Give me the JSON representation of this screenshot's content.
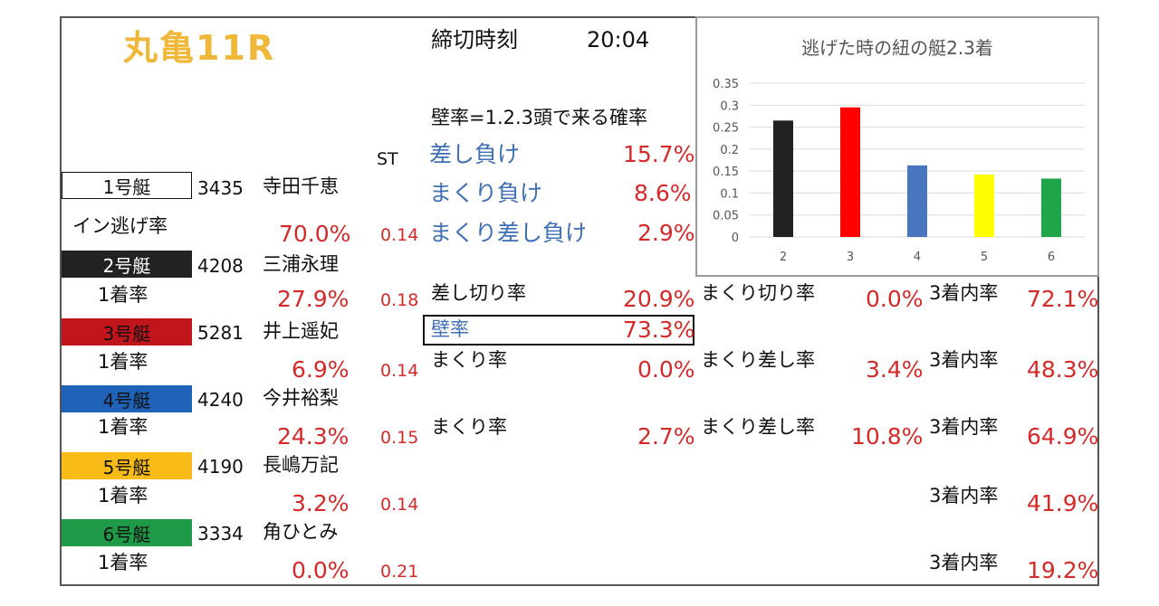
{
  "race_title": "丸亀11R",
  "deadline_label": "締切時刻",
  "deadline_time": "20:04",
  "wall_note": "壁率=1.2.3頭で来る確率",
  "st_header": "ST",
  "lane1_scenarios": [
    {
      "label": "差し負け",
      "value": "15.7%"
    },
    {
      "label": "まくり負け",
      "value": "8.6%"
    },
    {
      "label": "まくり差し負け",
      "value": "2.9%"
    }
  ],
  "boats": [
    {
      "name": "1号艇",
      "id": "3435",
      "racer": "寺田千恵",
      "rate_label": "イン逃げ率",
      "rate": "70.0%",
      "st": "0.14",
      "color": "#ffffff",
      "text_color": "#111111"
    },
    {
      "name": "2号艇",
      "id": "4208",
      "racer": "三浦永理",
      "rate_label": "1着率",
      "rate": "27.9%",
      "st": "0.18",
      "color": "#222222",
      "text_color": "#ffffff"
    },
    {
      "name": "3号艇",
      "id": "5281",
      "racer": "井上遥妃",
      "rate_label": "1着率",
      "rate": "6.9%",
      "st": "0.14",
      "color": "#c0151b",
      "text_color": "#111111"
    },
    {
      "name": "4号艇",
      "id": "4240",
      "racer": "今井裕梨",
      "rate_label": "1着率",
      "rate": "24.3%",
      "st": "0.15",
      "color": "#1f63b8",
      "text_color": "#111111"
    },
    {
      "name": "5号艇",
      "id": "4190",
      "racer": "長嶋万記",
      "rate_label": "1着率",
      "rate": "3.2%",
      "st": "0.14",
      "color": "#f8bb18",
      "text_color": "#111111"
    },
    {
      "name": "6号艇",
      "id": "3334",
      "racer": "角ひとみ",
      "rate_label": "1着率",
      "rate": "0.0%",
      "st": "0.21",
      "color": "#1f9a48",
      "text_color": "#111111"
    }
  ],
  "stats": {
    "sashi_kiri_label": "差し切り率",
    "sashi_kiri": "20.9%",
    "wall_label": "壁率",
    "wall": "73.3%",
    "makuri_kiri_label": "まくり切り率",
    "makuri_kiri": "0.0%",
    "top3_label": "3着内率",
    "b2_top3": "72.1%",
    "b3_makuri_label": "まくり率",
    "b3_makuri": "0.0%",
    "b3_makuri_sashi_label": "まくり差し率",
    "b3_makuri_sashi": "3.4%",
    "b3_top3": "48.3%",
    "b4_makuri_label": "まくり率",
    "b4_makuri": "2.7%",
    "b4_makuri_sashi_label": "まくり差し率",
    "b4_makuri_sashi": "10.8%",
    "b4_top3": "64.9%",
    "b5_top3": "41.9%",
    "b6_top3": "19.2%"
  },
  "colors": {
    "title": "#f0b83a",
    "value_red": "#d42a2a",
    "scenario_blue": "#3f6fb5"
  },
  "chart_data": {
    "type": "bar",
    "title": "逃げた時の紐の艇2.3着",
    "categories": [
      "2",
      "3",
      "4",
      "5",
      "6"
    ],
    "values": [
      0.265,
      0.295,
      0.163,
      0.142,
      0.133
    ],
    "colors": [
      "#222222",
      "#ff0000",
      "#4a76c0",
      "#ffff00",
      "#1fa64a"
    ],
    "ylim": [
      0,
      0.35
    ],
    "yticks": [
      "0",
      "0.05",
      "0.1",
      "0.15",
      "0.2",
      "0.25",
      "0.3",
      "0.35"
    ],
    "grid": true,
    "xlabel": "",
    "ylabel": ""
  }
}
